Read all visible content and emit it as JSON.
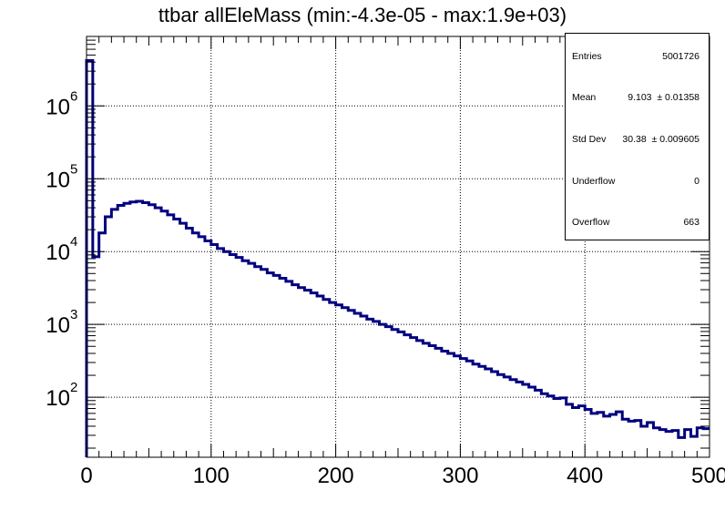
{
  "title": "ttbar allEleMass (min:-4.3e-05 - max:1.9e+03)",
  "stats": [
    {
      "name": "Entries",
      "value": "5001726"
    },
    {
      "name": "Mean",
      "value": "9.103  ± 0.01358"
    },
    {
      "name": "Std Dev",
      "value": "30.38  ± 0.009605"
    },
    {
      "name": "Underflow",
      "value": "0"
    },
    {
      "name": "Overflow",
      "value": "663"
    }
  ],
  "colors": {
    "line": "#000080",
    "grid": "#000000",
    "axis": "#000000"
  },
  "chart_data": {
    "type": "histogram-step",
    "title": "ttbar allEleMass (min:-4.3e-05 - max:1.9e+03)",
    "xlim": [
      0,
      500
    ],
    "ylim": [
      15,
      9000000
    ],
    "yscale": "log",
    "grid": true,
    "bin_width": 5,
    "x_ticks": [
      0,
      100,
      200,
      300,
      400,
      500
    ],
    "x_tick_labels": [
      "0",
      "100",
      "200",
      "300",
      "400",
      "500"
    ],
    "y_ticks": [
      100,
      1000,
      10000,
      100000,
      1000000
    ],
    "y_tick_labels": [
      {
        "base": "10",
        "exp": "2"
      },
      {
        "base": "10",
        "exp": "3"
      },
      {
        "base": "10",
        "exp": "4"
      },
      {
        "base": "10",
        "exp": "5"
      },
      {
        "base": "10",
        "exp": "6"
      }
    ],
    "bin_edges_start": 0,
    "counts": [
      4200000,
      8500,
      18000,
      30000,
      38000,
      43000,
      46000,
      48000,
      49000,
      47000,
      44000,
      40000,
      36000,
      32000,
      28000,
      24500,
      21000,
      18000,
      16000,
      14000,
      12500,
      11000,
      10000,
      9100,
      8300,
      7500,
      6900,
      6200,
      5700,
      5100,
      4700,
      4300,
      3900,
      3500,
      3200,
      2950,
      2700,
      2450,
      2200,
      2000,
      1850,
      1700,
      1560,
      1420,
      1300,
      1180,
      1100,
      1000,
      930,
      850,
      790,
      720,
      660,
      600,
      550,
      510,
      470,
      430,
      400,
      370,
      340,
      315,
      285,
      265,
      245,
      225,
      205,
      190,
      175,
      162,
      150,
      138,
      125,
      112,
      104,
      96,
      98,
      80,
      72,
      76,
      68,
      60,
      62,
      55,
      58,
      63,
      50,
      47,
      48,
      40,
      45,
      38,
      36,
      34,
      35,
      28,
      36,
      29,
      38,
      37
    ]
  }
}
